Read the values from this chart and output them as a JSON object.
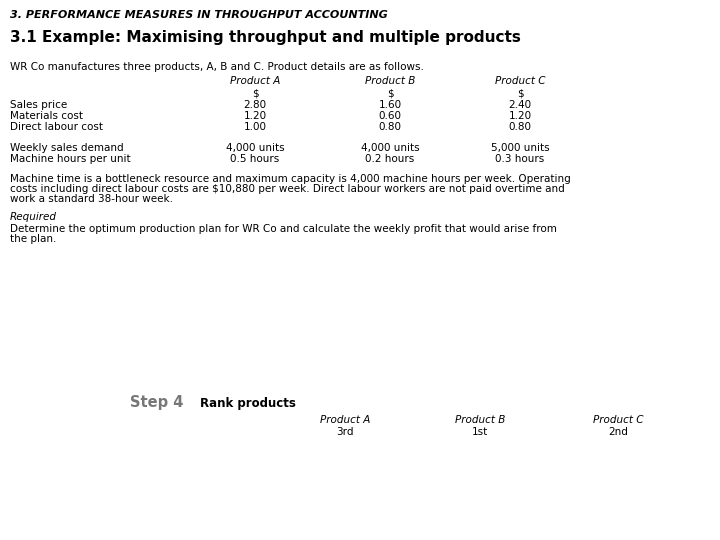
{
  "main_title": "3. PERFORMANCE MEASURES IN THROUGHPUT ACCOUNTING",
  "section_title": "3.1 Example: Maximising throughput and multiple products",
  "intro_text": "WR Co manufactures three products, A, B and C. Product details are as follows.",
  "col_headers": [
    "Product A",
    "Product B",
    "Product C"
  ],
  "currency_row": [
    "$",
    "$",
    "$"
  ],
  "row_labels": [
    "Sales price",
    "Materials cost",
    "Direct labour cost"
  ],
  "table_data": [
    [
      "2.80",
      "1.60",
      "2.40"
    ],
    [
      "1.20",
      "0.60",
      "1.20"
    ],
    [
      "1.00",
      "0.80",
      "0.80"
    ]
  ],
  "row_labels2": [
    "Weekly sales demand",
    "Machine hours per unit"
  ],
  "table_data2": [
    [
      "4,000 units",
      "4,000 units",
      "5,000 units"
    ],
    [
      "0.5 hours",
      "0.2 hours",
      "0.3 hours"
    ]
  ],
  "body_text_line1": "Machine time is a bottleneck resource and maximum capacity is 4,000 machine hours per week. Operating",
  "body_text_line2": "costs including direct labour costs are $10,880 per week. Direct labour workers are not paid overtime and",
  "body_text_line3": "work a standard 38-hour week.",
  "required_label": "Required",
  "required_text_line1": "Determine the optimum production plan for WR Co and calculate the weekly profit that would arise from",
  "required_text_line2": "the plan.",
  "step_label": "Step 4",
  "step_text": "Rank products",
  "rank_headers": [
    "Product A",
    "Product B",
    "Product C"
  ],
  "rank_values": [
    "3rd",
    "1st",
    "2nd"
  ],
  "bg_color": "#ffffff",
  "text_color": "#000000",
  "step_color": "#777777"
}
